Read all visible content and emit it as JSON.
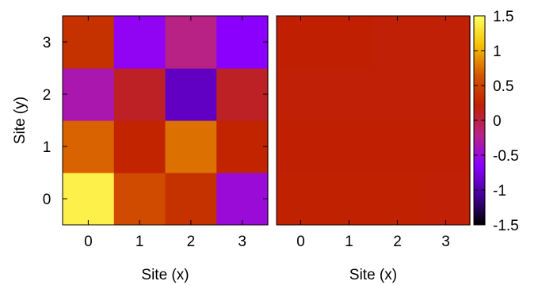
{
  "chart_data": [
    {
      "type": "heatmap",
      "xlabel": "Site (x)",
      "ylabel": "Site (y)",
      "x_categories": [
        "0",
        "1",
        "2",
        "3"
      ],
      "y_categories": [
        "0",
        "1",
        "2",
        "3"
      ],
      "values": [
        [
          1.4,
          0.55,
          0.35,
          -0.5
        ],
        [
          0.7,
          0.25,
          0.75,
          0.25
        ],
        [
          -0.35,
          0.1,
          -0.9,
          0.1
        ],
        [
          0.35,
          -0.6,
          -0.2,
          -0.65
        ]
      ]
    },
    {
      "type": "heatmap",
      "xlabel": "Site (x)",
      "ylabel": "",
      "x_categories": [
        "0",
        "1",
        "2",
        "3"
      ],
      "y_categories": [
        "0",
        "1",
        "2",
        "3"
      ],
      "values": [
        [
          0.22,
          0.22,
          0.22,
          0.2
        ],
        [
          0.21,
          0.21,
          0.21,
          0.21
        ],
        [
          0.2,
          0.2,
          0.2,
          0.2
        ],
        [
          0.21,
          0.21,
          0.2,
          0.2
        ]
      ]
    }
  ],
  "colorbar": {
    "range": [
      -1.5,
      1.5
    ],
    "ticks": [
      {
        "value": 1.5,
        "label": "1.5"
      },
      {
        "value": 1,
        "label": "1"
      },
      {
        "value": 0.5,
        "label": "0.5"
      },
      {
        "value": 0,
        "label": "0"
      },
      {
        "value": -0.5,
        "label": "-0.5"
      },
      {
        "value": -1,
        "label": "-1"
      },
      {
        "value": -1.5,
        "label": "-1.5"
      }
    ],
    "colormap": [
      "#000000",
      "#45009a",
      "#8c00ff",
      "#b72289",
      "#c02000",
      "#d45500",
      "#f5c000",
      "#ffff60"
    ]
  }
}
